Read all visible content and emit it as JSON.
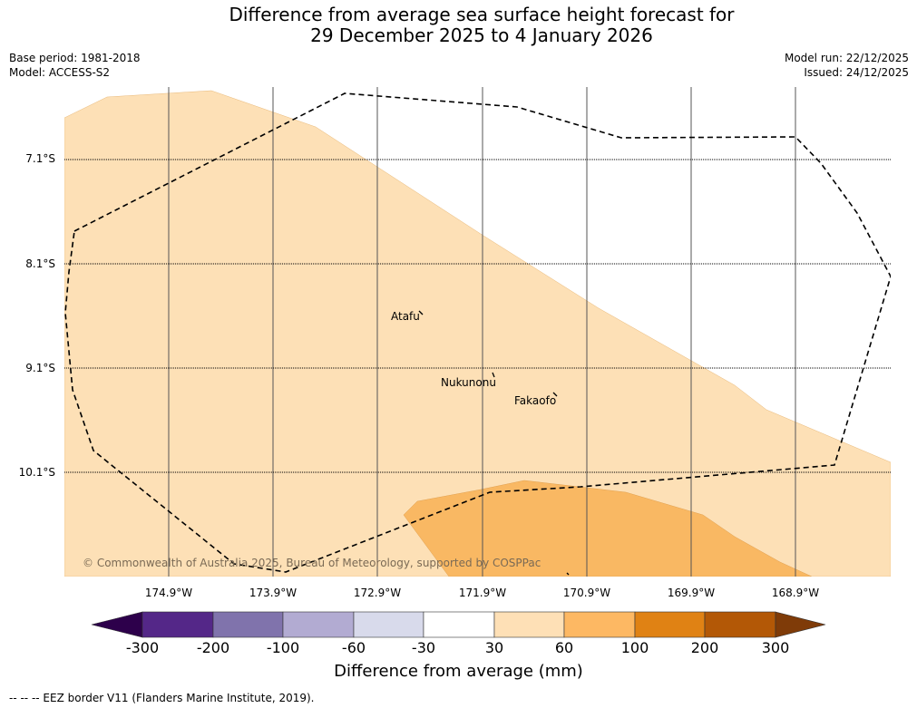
{
  "title": {
    "line1": "Difference from average sea surface height forecast for",
    "line2": "29 December 2025 to 4 January 2026"
  },
  "meta": {
    "base_period": "Base period: 1981-2018",
    "model": "Model: ACCESS-S2",
    "model_run": "Model run: 22/12/2025",
    "issued": "Issued: 24/12/2025"
  },
  "map": {
    "latitude_labels": [
      "7.1°S",
      "8.1°S",
      "9.1°S",
      "10.1°S"
    ],
    "longitude_labels": [
      "174.9°W",
      "173.9°W",
      "172.9°W",
      "171.9°W",
      "170.9°W",
      "169.9°W",
      "168.9°W"
    ],
    "islands": [
      "Atafu",
      "Nukunonu",
      "Fakaofo"
    ],
    "copyright": "© Commonwealth of Australia 2025, Bureau of Meteorology, supported by COSPPac",
    "colors": {
      "band_30_60": "#fde0b6",
      "band_60_100": "#f9b863",
      "eez_border": "#000000"
    }
  },
  "colorbar": {
    "ticks": [
      "-300",
      "-200",
      "-100",
      "-60",
      "-30",
      "30",
      "60",
      "100",
      "200",
      "300"
    ],
    "label": "Difference from average (mm)",
    "colors": [
      "#2d004b",
      "#542788",
      "#8073ac",
      "#b2abd2",
      "#d8daeb",
      "#ffffff",
      "#fee0b6",
      "#fdb863",
      "#e08214",
      "#b35806",
      "#7f3b08"
    ]
  },
  "footer": "--  --  -- EEZ border V11 (Flanders Marine Institute, 2019)."
}
